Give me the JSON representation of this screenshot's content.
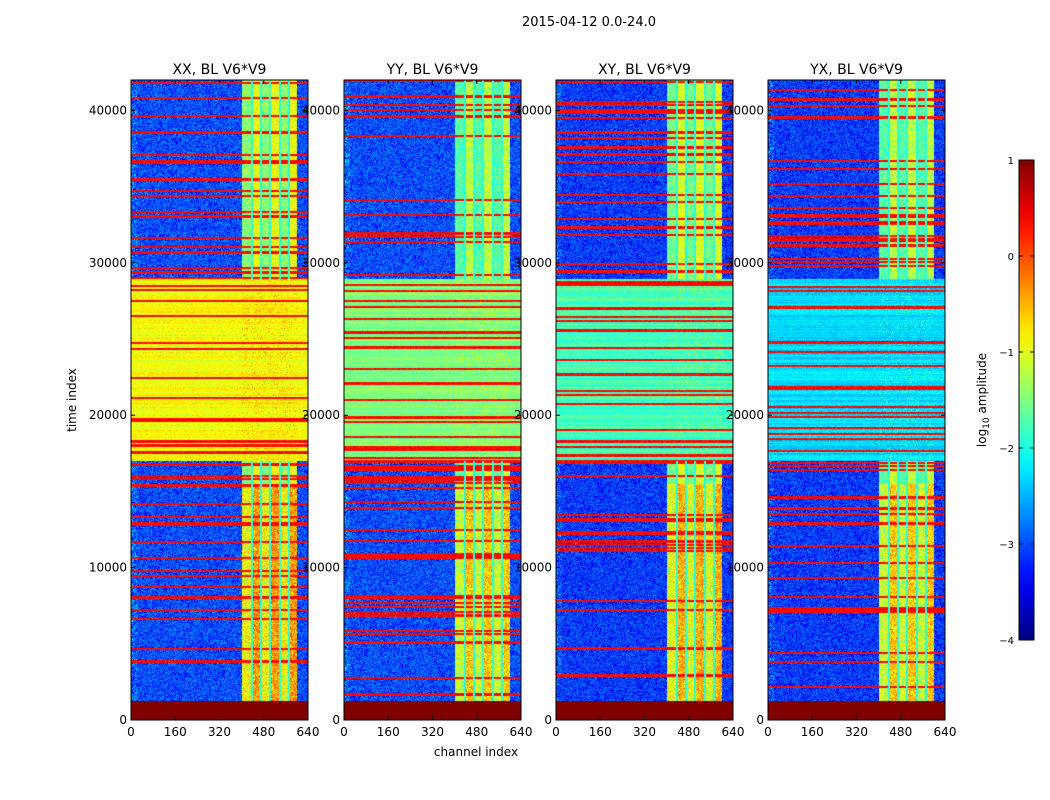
{
  "figure_title": "2015-04-12 0.0-24.0",
  "chart_data": {
    "type": "heatmap",
    "title": "2015-04-12 0.0-24.0",
    "xlabel": "channel index",
    "ylabel": "time index",
    "xlim": [
      0,
      640
    ],
    "ylim": [
      0,
      42000
    ],
    "x_ticks": [
      0,
      160,
      320,
      480,
      640
    ],
    "y_ticks": [
      0,
      10000,
      20000,
      30000,
      40000
    ],
    "colorbar": {
      "label": "log10 amplitude",
      "label_main": "log",
      "label_sub": "10",
      "label_rest": " amplitude",
      "range": [
        -4,
        1
      ],
      "ticks": [
        1,
        0,
        -1,
        -2,
        -3,
        -4
      ],
      "tick_labels": [
        "1",
        "0",
        "−1",
        "−2",
        "−3",
        "−4"
      ],
      "colormap": "jet"
    },
    "panels": [
      {
        "title": "XX, BL V6*V9",
        "pol": "XX",
        "mid_band_level": -0.9,
        "rfi_level": 0.45,
        "bg_level": -3.0
      },
      {
        "title": "YY, BL V6*V9",
        "pol": "YY",
        "mid_band_level": -1.5,
        "rfi_level": 0.2,
        "bg_level": -3.0
      },
      {
        "title": "XY, BL V6*V9",
        "pol": "XY",
        "mid_band_level": -1.8,
        "rfi_level": 0.35,
        "bg_level": -3.1
      },
      {
        "title": "YX, BL V6*V9",
        "pol": "YX",
        "mid_band_level": -2.3,
        "rfi_level": 0.2,
        "bg_level": -3.1
      }
    ],
    "features": {
      "saturated_time_range": [
        0,
        1300
      ],
      "mid_band_time_range": [
        17000,
        29000
      ],
      "rfi_channel_range": [
        400,
        600
      ],
      "low_band_time_range": [
        0,
        17000
      ],
      "high_band_time_range": [
        29000,
        42000
      ]
    }
  }
}
